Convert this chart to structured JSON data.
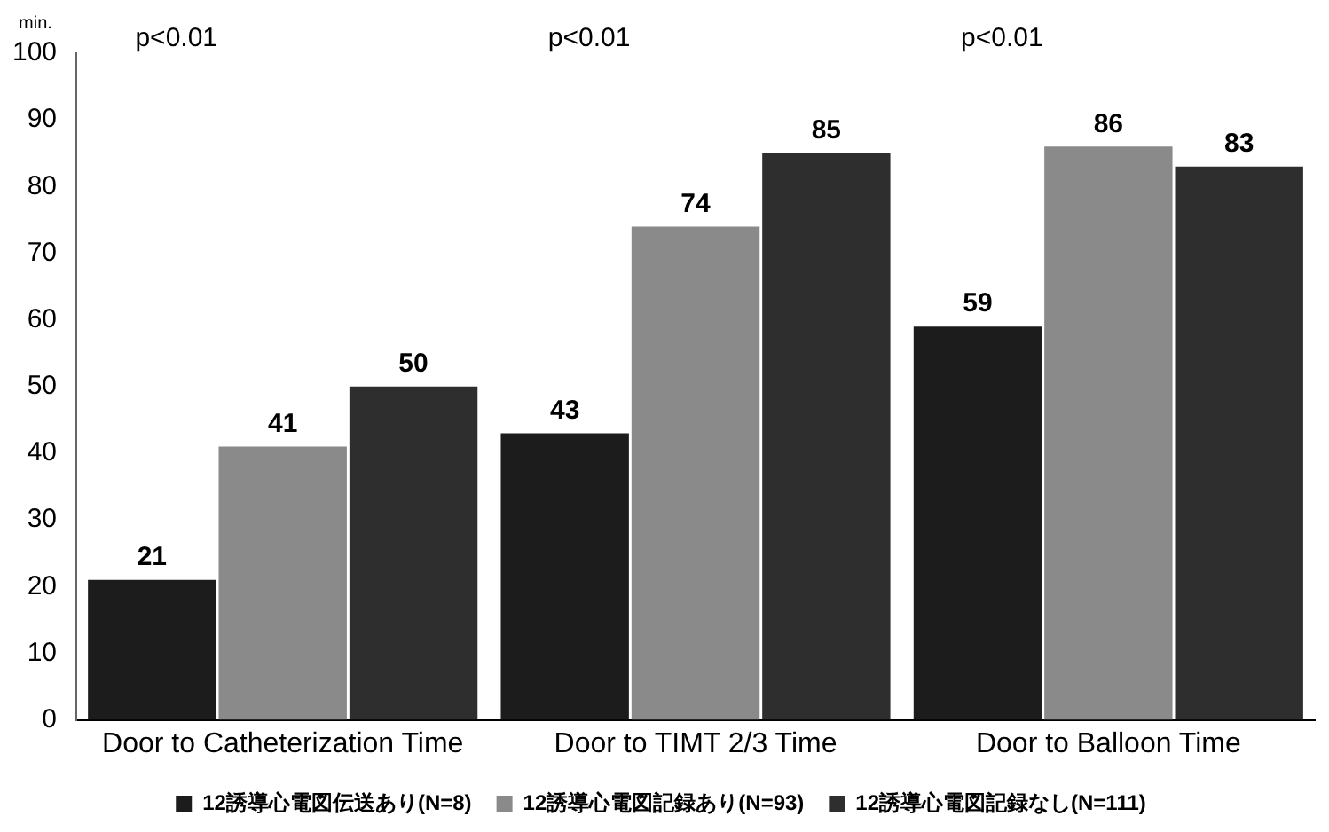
{
  "chart_data": {
    "type": "bar",
    "ylabel": "min.",
    "categories": [
      "Door to Catheterization Time",
      "Door to TIMT 2/3 Time",
      "Door to Balloon Time"
    ],
    "series": [
      {
        "name": "12誘導心電図伝送あり(N=8)",
        "color": "#1c1c1c",
        "values": [
          21,
          43,
          59
        ]
      },
      {
        "name": "12誘導心電図記録あり(N=93)",
        "color": "#8a8a8a",
        "values": [
          41,
          74,
          86
        ]
      },
      {
        "name": "12誘導心電図記録なし(N=111)",
        "color": "#2e2e2e",
        "values": [
          50,
          85,
          83
        ]
      }
    ],
    "ylim": [
      0,
      100
    ],
    "yticks": [
      0,
      10,
      20,
      30,
      40,
      50,
      60,
      70,
      80,
      90,
      100
    ],
    "grid": false,
    "legend": "bottom",
    "data_labels": true,
    "annotations": [
      "p<0.01",
      "p<0.01",
      "p<0.01"
    ]
  }
}
